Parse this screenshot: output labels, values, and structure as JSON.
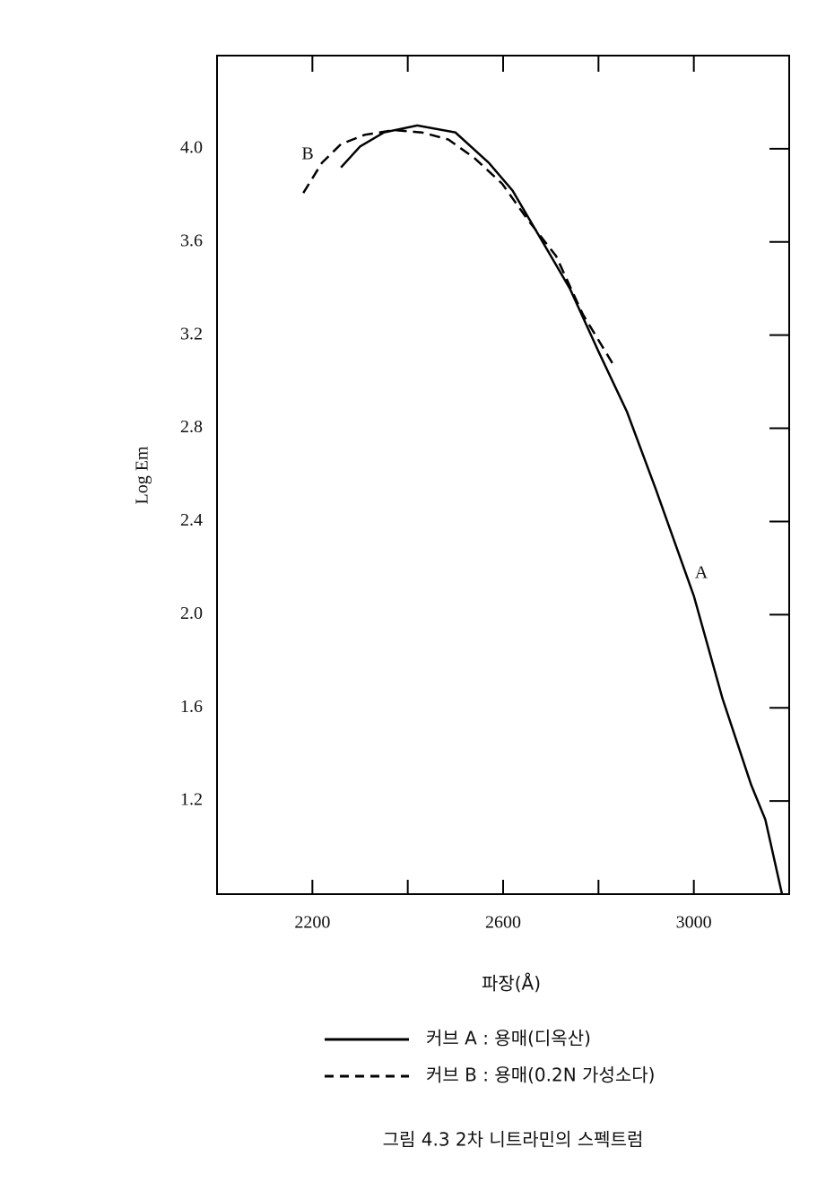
{
  "chart_data": {
    "type": "line",
    "xlabel": "파장(Å)",
    "ylabel": "Log Em",
    "caption": "그림 4.3  2차 니트라민의 스펙트럼",
    "xlim": [
      2000,
      3200
    ],
    "ylim": [
      0.8,
      4.4
    ],
    "xticks": [
      2200,
      2600,
      3000
    ],
    "xminor_ticks": [
      2400,
      2800
    ],
    "yticks": [
      {
        "value": 4,
        "label": "4.0"
      },
      3.6,
      3.2,
      2.8,
      2.4,
      {
        "value": 2,
        "label": "2.0"
      },
      1.6,
      1.2
    ],
    "series": [
      {
        "name": "커브 A : 용매(디옥산)",
        "label": "A",
        "style": "solid",
        "color": "#000000",
        "x": [
          2260,
          2300,
          2350,
          2420,
          2500,
          2570,
          2620,
          2660,
          2700,
          2740,
          2800,
          2860,
          2920,
          3000,
          3060,
          3120,
          3150,
          3185
        ],
        "values": [
          3.92,
          4.01,
          4.07,
          4.1,
          4.07,
          3.94,
          3.82,
          3.68,
          3.54,
          3.4,
          3.13,
          2.87,
          2.54,
          2.08,
          1.64,
          1.27,
          1.12,
          0.8
        ]
      },
      {
        "name": "커브 B : 용매(0.2N 가성소다)",
        "label": "B",
        "style": "dashed",
        "color": "#000000",
        "x": [
          2181,
          2220,
          2260,
          2310,
          2372,
          2430,
          2485,
          2540,
          2598,
          2650,
          2711,
          2767,
          2829
        ],
        "values": [
          3.81,
          3.94,
          4.02,
          4.06,
          4.08,
          4.07,
          4.04,
          3.96,
          3.85,
          3.7,
          3.54,
          3.29,
          3.08
        ]
      }
    ]
  }
}
